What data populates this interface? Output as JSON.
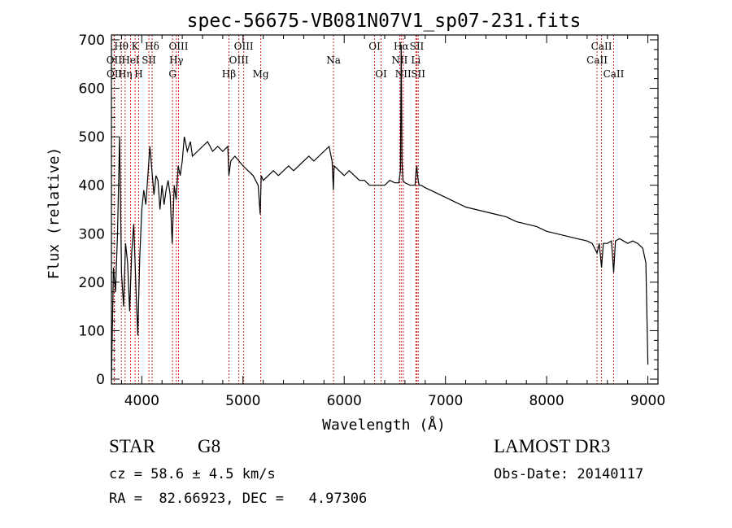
{
  "chart_data": {
    "type": "line",
    "title": "spec-56675-VB081N07V1_sp07-231.fits",
    "xlabel": "Wavelength (Å)",
    "ylabel": "Flux (relative)",
    "xlim": [
      3700,
      9100
    ],
    "ylim": [
      -10,
      710
    ],
    "xticks": [
      4000,
      5000,
      6000,
      7000,
      8000,
      9000
    ],
    "yticks": [
      0,
      100,
      200,
      300,
      400,
      500,
      600,
      700
    ],
    "grid": false,
    "series": [
      {
        "name": "spectrum",
        "x": [
          3700,
          3720,
          3740,
          3760,
          3780,
          3800,
          3820,
          3840,
          3860,
          3880,
          3900,
          3920,
          3940,
          3960,
          3980,
          4000,
          4020,
          4040,
          4060,
          4080,
          4100,
          4120,
          4140,
          4160,
          4180,
          4200,
          4220,
          4240,
          4260,
          4280,
          4300,
          4320,
          4340,
          4360,
          4380,
          4400,
          4420,
          4450,
          4480,
          4500,
          4550,
          4600,
          4650,
          4700,
          4750,
          4800,
          4850,
          4860,
          4880,
          4920,
          4960,
          5000,
          5050,
          5100,
          5150,
          5170,
          5180,
          5200,
          5250,
          5300,
          5350,
          5400,
          5450,
          5500,
          5550,
          5600,
          5650,
          5700,
          5750,
          5800,
          5850,
          5880,
          5893,
          5900,
          5950,
          6000,
          6050,
          6100,
          6150,
          6200,
          6250,
          6300,
          6350,
          6400,
          6450,
          6500,
          6540,
          6555,
          6563,
          6570,
          6580,
          6600,
          6650,
          6700,
          6710,
          6717,
          6725,
          6731,
          6740,
          6760,
          6800,
          6900,
          7000,
          7100,
          7200,
          7300,
          7400,
          7500,
          7600,
          7700,
          7800,
          7900,
          8000,
          8100,
          8200,
          8300,
          8400,
          8450,
          8498,
          8520,
          8542,
          8560,
          8600,
          8640,
          8662,
          8680,
          8720,
          8760,
          8800,
          8850,
          8900,
          8950,
          8980,
          9000
        ],
        "y": [
          0,
          230,
          180,
          300,
          500,
          220,
          150,
          280,
          240,
          140,
          260,
          320,
          200,
          90,
          250,
          350,
          390,
          360,
          420,
          480,
          430,
          380,
          420,
          410,
          350,
          400,
          360,
          390,
          410,
          380,
          280,
          400,
          370,
          440,
          420,
          450,
          500,
          470,
          490,
          460,
          470,
          480,
          490,
          470,
          480,
          470,
          480,
          420,
          450,
          460,
          450,
          440,
          430,
          420,
          400,
          340,
          420,
          410,
          420,
          430,
          420,
          430,
          440,
          430,
          440,
          450,
          460,
          450,
          460,
          470,
          480,
          450,
          390,
          440,
          430,
          420,
          430,
          420,
          410,
          410,
          400,
          400,
          400,
          400,
          410,
          405,
          405,
          430,
          690,
          450,
          410,
          405,
          400,
          400,
          430,
          440,
          420,
          410,
          400,
          400,
          395,
          385,
          375,
          365,
          355,
          350,
          345,
          340,
          335,
          325,
          320,
          315,
          305,
          300,
          295,
          290,
          285,
          280,
          260,
          280,
          230,
          280,
          280,
          285,
          220,
          285,
          290,
          285,
          280,
          285,
          280,
          270,
          240,
          30
        ]
      }
    ],
    "lines": [
      {
        "name": "Hθ",
        "wavelength": 3798,
        "row": 1
      },
      {
        "name": "OII",
        "wavelength": 3727,
        "row": 2
      },
      {
        "name": "OII",
        "wavelength": 3729,
        "row": 3
      },
      {
        "name": "Hη",
        "wavelength": 3835,
        "row": 3
      },
      {
        "name": "HeI",
        "wavelength": 3889,
        "row": 2
      },
      {
        "name": "K",
        "wavelength": 3934,
        "row": 1
      },
      {
        "name": "SII",
        "wavelength": 4070,
        "row": 2
      },
      {
        "name": "H",
        "wavelength": 3969,
        "row": 3
      },
      {
        "name": "Hδ",
        "wavelength": 4102,
        "row": 1
      },
      {
        "name": "OIII",
        "wavelength": 4363,
        "row": 1
      },
      {
        "name": "Hγ",
        "wavelength": 4341,
        "row": 2
      },
      {
        "name": "G",
        "wavelength": 4304,
        "row": 3
      },
      {
        "name": "OIII",
        "wavelength": 5007,
        "row": 1
      },
      {
        "name": "OIII",
        "wavelength": 4959,
        "row": 2
      },
      {
        "name": "Hβ",
        "wavelength": 4861,
        "row": 3
      },
      {
        "name": "Mg",
        "wavelength": 5175,
        "row": 3
      },
      {
        "name": "Na",
        "wavelength": 5894,
        "row": 2
      },
      {
        "name": "OI",
        "wavelength": 6300,
        "row": 1
      },
      {
        "name": "OI",
        "wavelength": 6364,
        "row": 3
      },
      {
        "name": "Hα",
        "wavelength": 6563,
        "row": 1
      },
      {
        "name": "NII",
        "wavelength": 6548,
        "row": 2
      },
      {
        "name": "NII",
        "wavelength": 6583,
        "row": 3
      },
      {
        "name": "SII",
        "wavelength": 6717,
        "row": 1
      },
      {
        "name": "Li",
        "wavelength": 6708,
        "row": 2
      },
      {
        "name": "SII",
        "wavelength": 6731,
        "row": 3
      },
      {
        "name": "CaII",
        "wavelength": 8542,
        "row": 1
      },
      {
        "name": "CaII",
        "wavelength": 8498,
        "row": 2
      },
      {
        "name": "CaII",
        "wavelength": 8662,
        "row": 3
      }
    ]
  },
  "info": {
    "class": "STAR",
    "subclass": "G8",
    "survey": "LAMOST DR3",
    "cz": "cz = 58.6 ± 4.5 km/s",
    "obs_date": "Obs-Date: 20140117",
    "radec": "RA =  82.66923, DEC =   4.97306"
  },
  "colors": {
    "line_marker": "#cc2222",
    "spectrum": "#000000",
    "axis": "#000000"
  }
}
